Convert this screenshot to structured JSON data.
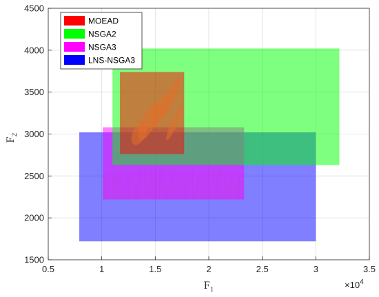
{
  "chart_data": {
    "type": "area",
    "title": "",
    "xlabel": "F",
    "xlabel_sub": "1",
    "ylabel": "F",
    "ylabel_sub": "2",
    "x_exponent_label": "×10",
    "x_exponent_power": "4",
    "xlim": [
      0.5,
      3.5
    ],
    "ylim": [
      1500,
      4500
    ],
    "xticks": [
      0.5,
      1,
      1.5,
      2,
      2.5,
      3,
      3.5
    ],
    "xtick_labels": [
      "0.5",
      "1",
      "1.5",
      "2",
      "2.5",
      "3",
      "3.5"
    ],
    "yticks": [
      1500,
      2000,
      2500,
      3000,
      3500,
      4000,
      4500
    ],
    "ytick_labels": [
      "1500",
      "2000",
      "2500",
      "3000",
      "3500",
      "4000",
      "4500"
    ],
    "grid": true,
    "legend_position": "top-left",
    "series": [
      {
        "name": "MOEAD",
        "color": "#ff0000",
        "x_range": [
          1.17,
          1.77
        ],
        "y_range": [
          2760,
          3740
        ]
      },
      {
        "name": "NSGA2",
        "color": "#00ff00",
        "x_range": [
          1.1,
          3.22
        ],
        "y_range": [
          2630,
          4020
        ]
      },
      {
        "name": "NSGA3",
        "color": "#ff00ff",
        "x_range": [
          1.01,
          2.33
        ],
        "y_range": [
          2220,
          3080
        ]
      },
      {
        "name": "LNS-NSGA3",
        "color": "#0000ff",
        "x_range": [
          0.79,
          3.0
        ],
        "y_range": [
          1720,
          3020
        ]
      }
    ]
  }
}
